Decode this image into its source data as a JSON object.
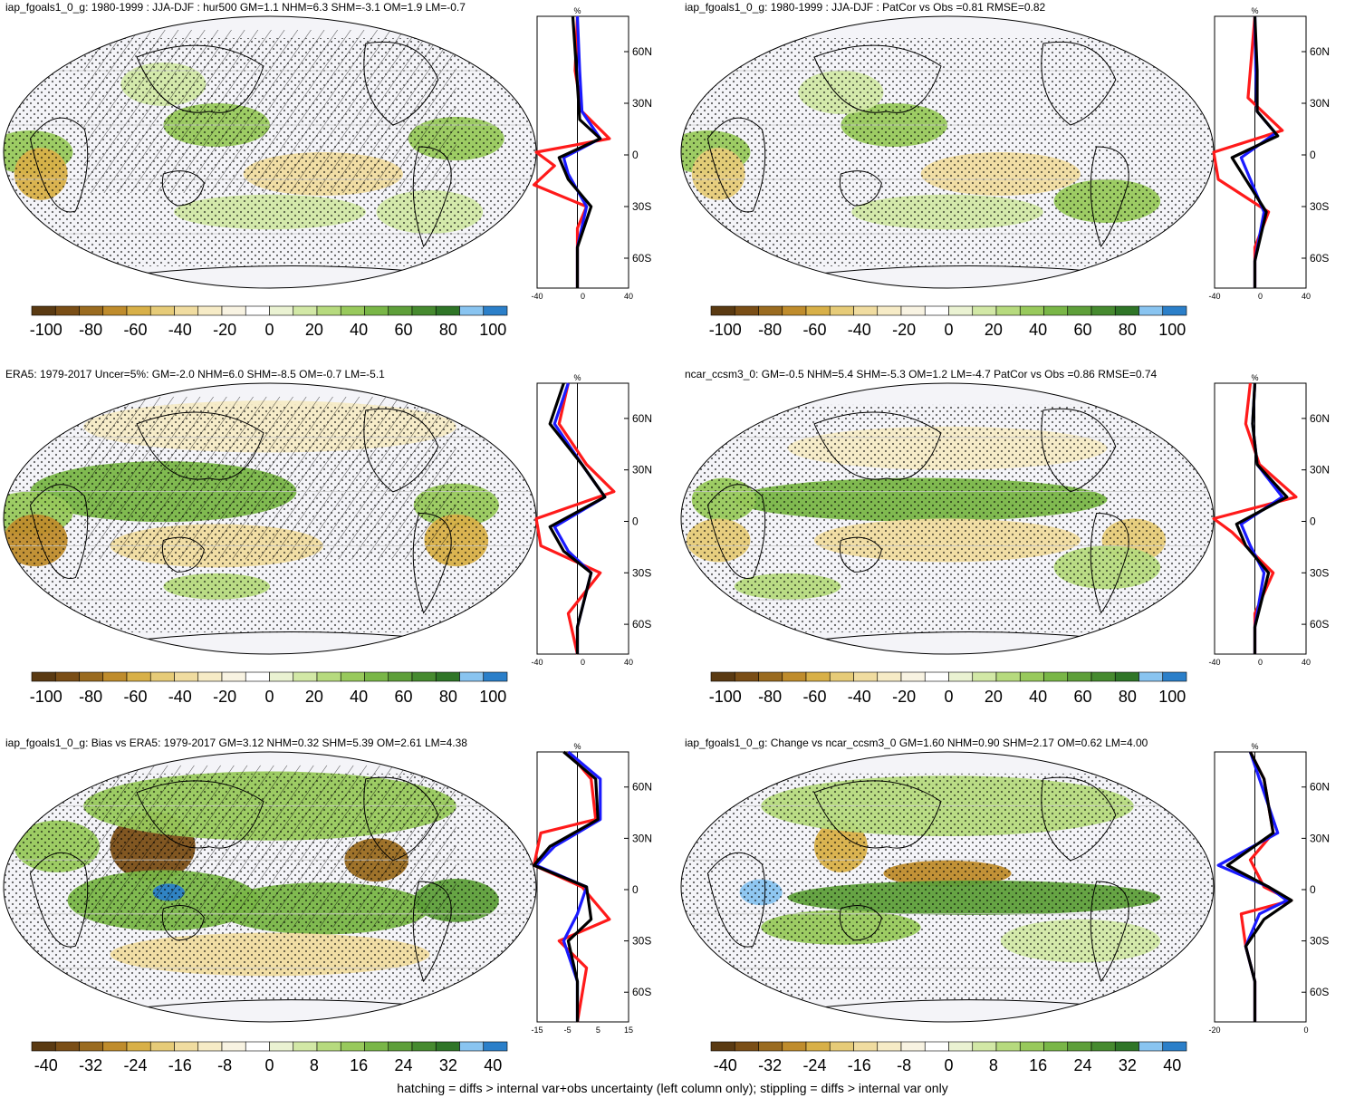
{
  "footer": "hatching = diffs > internal var+obs uncertainty (left column only); stippling = diffs > internal var only",
  "colors": {
    "brown_to_green": [
      "#5a3a12",
      "#7a4e16",
      "#9a6b20",
      "#bf8c2c",
      "#d8b048",
      "#e6cb78",
      "#f0dca0",
      "#f6ebc6",
      "#f8f3e2",
      "#ffffff",
      "#eaf2d2",
      "#d2e8a6",
      "#b6da7e",
      "#98c95c",
      "#79b647",
      "#5e9f3a",
      "#468a2f",
      "#2f7527",
      "#89c4f0",
      "#2b7fc9"
    ],
    "profile_red": "#ff1a1a",
    "profile_blue": "#1a1aff",
    "profile_black": "#000000"
  },
  "panels": [
    {
      "title": "iap_fgoals1_0_g: 1980-1999 : JJA-DJF : hur500 GM=1.1 NHM=6.3 SHM=-3.1 OM=1.9 LM=-0.7",
      "colorbar_labels": [
        "-100",
        "-80",
        "-60",
        "-40",
        "-20",
        "0",
        "20",
        "40",
        "60",
        "80",
        "100"
      ],
      "profile_x_labels": [
        "-40",
        "0",
        "40"
      ],
      "profile_unit": "%",
      "lat_labels": [
        "60N",
        "30N",
        "0",
        "30S",
        "60S"
      ]
    },
    {
      "title": "iap_fgoals1_0_g: 1980-1999 : JJA-DJF : PatCor vs Obs =0.81 RMSE=0.82",
      "colorbar_labels": [
        "-100",
        "-80",
        "-60",
        "-40",
        "-20",
        "0",
        "20",
        "40",
        "60",
        "80",
        "100"
      ],
      "profile_x_labels": [
        "-40",
        "0",
        "40"
      ],
      "profile_unit": "%",
      "lat_labels": [
        "60N",
        "30N",
        "0",
        "30S",
        "60S"
      ]
    },
    {
      "title": "ERA5: 1979-2017 Uncer=5%: GM=-2.0 NHM=6.0 SHM=-8.5 OM=-0.7 LM=-5.1",
      "colorbar_labels": [
        "-100",
        "-80",
        "-60",
        "-40",
        "-20",
        "0",
        "20",
        "40",
        "60",
        "80",
        "100"
      ],
      "profile_x_labels": [
        "-40",
        "0",
        "40"
      ],
      "profile_unit": "%",
      "lat_labels": [
        "60N",
        "30N",
        "0",
        "30S",
        "60S"
      ]
    },
    {
      "title": "ncar_ccsm3_0: GM=-0.5 NHM=5.4 SHM=-5.3 OM=1.2 LM=-4.7 PatCor vs Obs =0.86 RMSE=0.74",
      "colorbar_labels": [
        "-100",
        "-80",
        "-60",
        "-40",
        "-20",
        "0",
        "20",
        "40",
        "60",
        "80",
        "100"
      ],
      "profile_x_labels": [
        "-40",
        "0",
        "40"
      ],
      "profile_unit": "%",
      "lat_labels": [
        "60N",
        "30N",
        "0",
        "30S",
        "60S"
      ]
    },
    {
      "title": "iap_fgoals1_0_g: Bias vs ERA5: 1979-2017 GM=3.12 NHM=0.32 SHM=5.39 OM=2.61 LM=4.38",
      "colorbar_labels": [
        "-40",
        "-32",
        "-24",
        "-16",
        "-8",
        "0",
        "8",
        "16",
        "24",
        "32",
        "40"
      ],
      "profile_x_labels": [
        "-15",
        "-5",
        "5",
        "15"
      ],
      "profile_unit": "%",
      "lat_labels": [
        "60N",
        "30N",
        "0",
        "30S",
        "60S"
      ]
    },
    {
      "title": "iap_fgoals1_0_g: Change vs ncar_ccsm3_0 GM=1.60 NHM=0.90 SHM=2.17 OM=0.62 LM=4.00",
      "colorbar_labels": [
        "-40",
        "-32",
        "-24",
        "-16",
        "-8",
        "0",
        "8",
        "16",
        "24",
        "32",
        "40"
      ],
      "profile_x_labels": [
        "-20",
        "0"
      ],
      "profile_unit": "%",
      "lat_labels": [
        "60N",
        "30N",
        "0",
        "30S",
        "60S"
      ]
    }
  ]
}
